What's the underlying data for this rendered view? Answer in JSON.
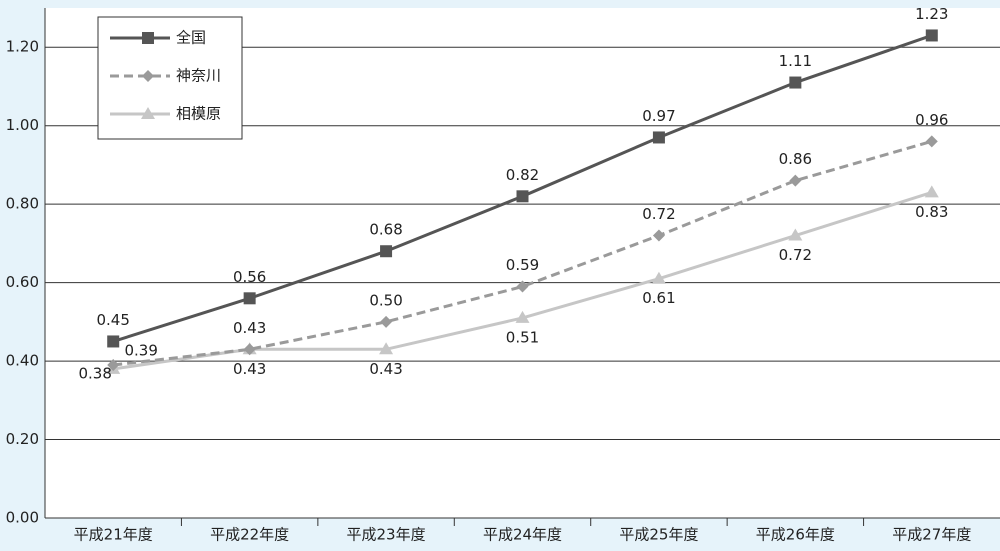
{
  "chart_data": {
    "type": "line",
    "categories": [
      "平成21年度",
      "平成22年度",
      "平成23年度",
      "平成24年度",
      "平成25年度",
      "平成26年度",
      "平成27年度"
    ],
    "series": [
      {
        "name": "全国",
        "color": "#555555",
        "marker": "square",
        "dash": false,
        "values": [
          0.45,
          0.56,
          0.68,
          0.82,
          0.97,
          1.11,
          1.23
        ]
      },
      {
        "name": "神奈川",
        "color": "#9a9a9a",
        "marker": "diamond",
        "dash": true,
        "values": [
          0.39,
          0.43,
          0.5,
          0.59,
          0.72,
          0.86,
          0.96
        ]
      },
      {
        "name": "相模原",
        "color": "#c6c6c6",
        "marker": "triangle",
        "dash": false,
        "values": [
          0.38,
          0.43,
          0.43,
          0.51,
          0.61,
          0.72,
          0.83
        ]
      }
    ],
    "ylim": [
      0,
      1.3
    ],
    "yticks": [
      {
        "value": 0,
        "label": "0.00"
      },
      {
        "value": 0.2,
        "label": "0.20"
      },
      {
        "value": 0.4,
        "label": "0.40"
      },
      {
        "value": 0.6,
        "label": "0.60"
      },
      {
        "value": 0.8,
        "label": "0.80"
      },
      {
        "value": 1.0,
        "label": "1.00"
      },
      {
        "value": 1.2,
        "label": "1.20"
      }
    ],
    "grid": true,
    "legend": "upper left"
  }
}
